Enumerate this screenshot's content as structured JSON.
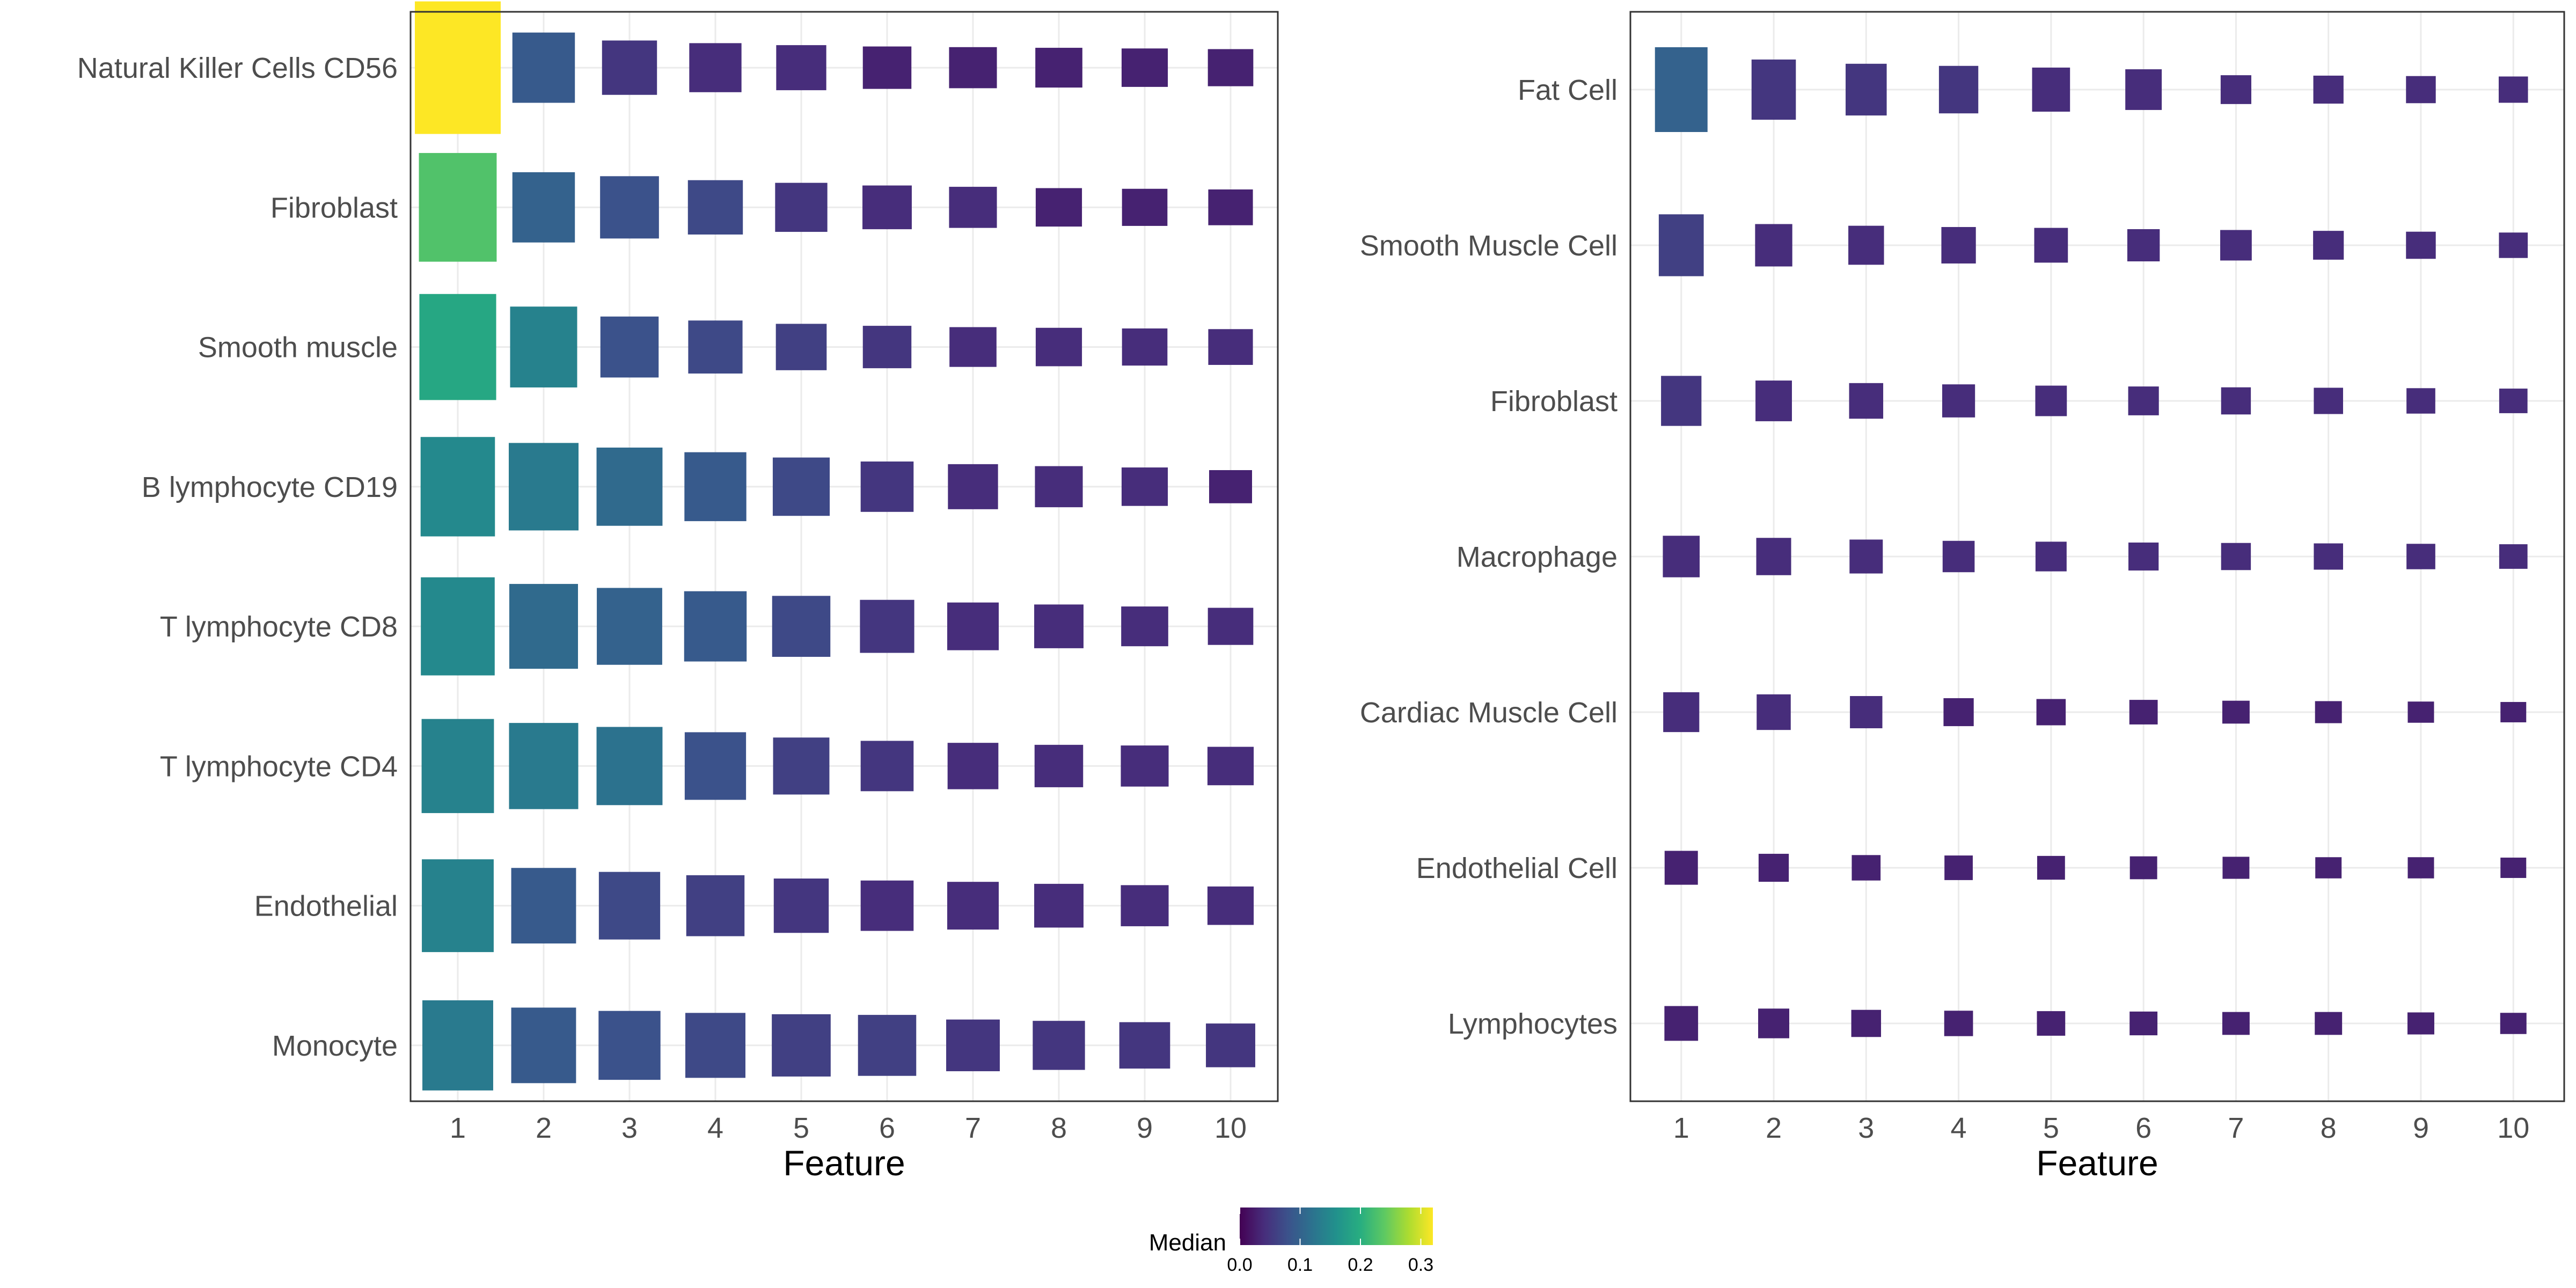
{
  "chart_data": [
    {
      "type": "heatmap",
      "xlabel": "Feature",
      "x": [
        1,
        2,
        3,
        4,
        5,
        6,
        7,
        8,
        9,
        10
      ],
      "grid": true,
      "rows": [
        {
          "label": "Natural Killer Cells CD56",
          "size": [
            1.0,
            0.53,
            0.41,
            0.37,
            0.34,
            0.32,
            0.31,
            0.3,
            0.29,
            0.28
          ],
          "median": [
            0.32,
            0.09,
            0.05,
            0.04,
            0.04,
            0.03,
            0.03,
            0.03,
            0.03,
            0.03
          ]
        },
        {
          "label": "Fibroblast",
          "size": [
            0.82,
            0.53,
            0.47,
            0.41,
            0.37,
            0.33,
            0.31,
            0.29,
            0.28,
            0.27
          ],
          "median": [
            0.23,
            0.1,
            0.08,
            0.07,
            0.05,
            0.04,
            0.04,
            0.03,
            0.03,
            0.03
          ]
        },
        {
          "label": "Smooth muscle",
          "size": [
            0.8,
            0.61,
            0.46,
            0.4,
            0.35,
            0.32,
            0.3,
            0.29,
            0.28,
            0.27
          ],
          "median": [
            0.19,
            0.14,
            0.08,
            0.07,
            0.06,
            0.05,
            0.04,
            0.04,
            0.04,
            0.04
          ]
        },
        {
          "label": "B lymphocyte CD19",
          "size": [
            0.75,
            0.66,
            0.59,
            0.52,
            0.44,
            0.38,
            0.34,
            0.31,
            0.29,
            0.25
          ],
          "median": [
            0.15,
            0.13,
            0.11,
            0.09,
            0.07,
            0.05,
            0.04,
            0.04,
            0.04,
            0.03
          ]
        },
        {
          "label": "T lymphocyte CD8",
          "size": [
            0.74,
            0.64,
            0.58,
            0.53,
            0.46,
            0.4,
            0.36,
            0.33,
            0.3,
            0.28
          ],
          "median": [
            0.15,
            0.11,
            0.1,
            0.09,
            0.07,
            0.05,
            0.04,
            0.04,
            0.04,
            0.04
          ]
        },
        {
          "label": "T lymphocyte CD4",
          "size": [
            0.71,
            0.65,
            0.59,
            0.51,
            0.43,
            0.38,
            0.35,
            0.32,
            0.31,
            0.29
          ],
          "median": [
            0.14,
            0.13,
            0.12,
            0.08,
            0.06,
            0.05,
            0.04,
            0.04,
            0.04,
            0.04
          ]
        },
        {
          "label": "Endothelial",
          "size": [
            0.7,
            0.57,
            0.51,
            0.46,
            0.41,
            0.38,
            0.36,
            0.33,
            0.31,
            0.29
          ],
          "median": [
            0.14,
            0.09,
            0.07,
            0.06,
            0.05,
            0.04,
            0.04,
            0.04,
            0.04,
            0.04
          ]
        },
        {
          "label": "Monocyte",
          "size": [
            0.68,
            0.57,
            0.52,
            0.49,
            0.47,
            0.46,
            0.39,
            0.37,
            0.35,
            0.33
          ],
          "median": [
            0.13,
            0.09,
            0.08,
            0.07,
            0.06,
            0.06,
            0.05,
            0.05,
            0.05,
            0.05
          ]
        }
      ]
    },
    {
      "type": "heatmap",
      "xlabel": "Feature",
      "x": [
        1,
        2,
        3,
        4,
        5,
        6,
        7,
        8,
        9,
        10
      ],
      "grid": true,
      "rows": [
        {
          "label": "Fat Cell",
          "size": [
            1.0,
            0.71,
            0.61,
            0.56,
            0.52,
            0.48,
            0.34,
            0.33,
            0.32,
            0.31
          ],
          "median": [
            0.1,
            0.05,
            0.05,
            0.05,
            0.04,
            0.04,
            0.04,
            0.04,
            0.04,
            0.04
          ]
        },
        {
          "label": "Smooth Muscle Cell",
          "size": [
            0.73,
            0.5,
            0.46,
            0.43,
            0.41,
            0.38,
            0.36,
            0.34,
            0.32,
            0.3
          ],
          "median": [
            0.06,
            0.04,
            0.04,
            0.04,
            0.04,
            0.04,
            0.04,
            0.04,
            0.04,
            0.04
          ]
        },
        {
          "label": "Fibroblast",
          "size": [
            0.59,
            0.48,
            0.42,
            0.39,
            0.36,
            0.34,
            0.32,
            0.31,
            0.3,
            0.29
          ],
          "median": [
            0.05,
            0.04,
            0.04,
            0.04,
            0.04,
            0.04,
            0.04,
            0.04,
            0.04,
            0.04
          ]
        },
        {
          "label": "Macrophage",
          "size": [
            0.49,
            0.44,
            0.4,
            0.37,
            0.35,
            0.33,
            0.32,
            0.31,
            0.3,
            0.29
          ],
          "median": [
            0.04,
            0.04,
            0.04,
            0.04,
            0.04,
            0.04,
            0.04,
            0.04,
            0.04,
            0.04
          ]
        },
        {
          "label": "Cardiac Muscle Cell",
          "size": [
            0.47,
            0.42,
            0.38,
            0.33,
            0.31,
            0.29,
            0.27,
            0.26,
            0.25,
            0.24
          ],
          "median": [
            0.04,
            0.04,
            0.04,
            0.03,
            0.03,
            0.03,
            0.03,
            0.03,
            0.03,
            0.03
          ]
        },
        {
          "label": "Endothelial Cell",
          "size": [
            0.4,
            0.33,
            0.3,
            0.29,
            0.28,
            0.27,
            0.26,
            0.25,
            0.25,
            0.24
          ],
          "median": [
            0.03,
            0.03,
            0.03,
            0.03,
            0.03,
            0.03,
            0.03,
            0.03,
            0.03,
            0.03
          ]
        },
        {
          "label": "Lymphocytes",
          "size": [
            0.41,
            0.35,
            0.32,
            0.3,
            0.29,
            0.28,
            0.27,
            0.27,
            0.26,
            0.25
          ],
          "median": [
            0.03,
            0.03,
            0.03,
            0.03,
            0.03,
            0.03,
            0.03,
            0.03,
            0.03,
            0.03
          ]
        }
      ]
    }
  ],
  "legend": {
    "title": "Median",
    "ticks": [
      "0.0",
      "0.1",
      "0.2",
      "0.3"
    ],
    "range": [
      0,
      0.32
    ],
    "position": "bottom"
  },
  "colormap": "viridis"
}
